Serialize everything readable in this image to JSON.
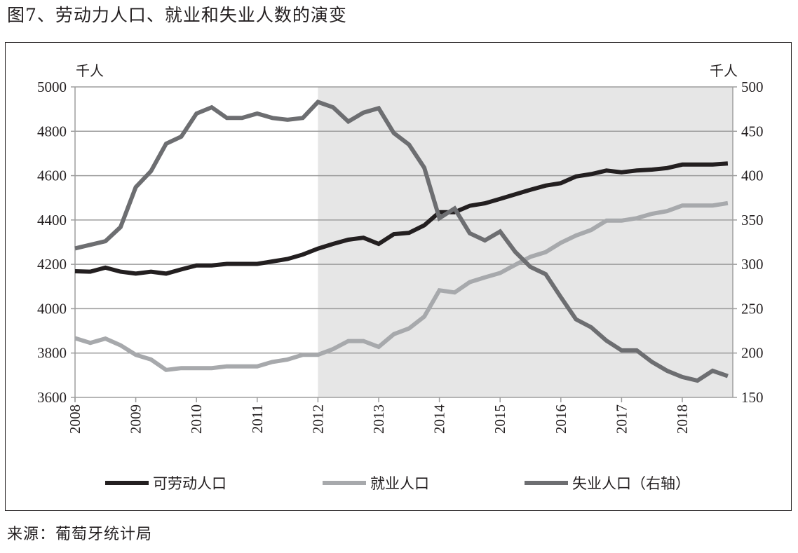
{
  "title": "图7、劳动力人口、就业和失业人数的演变",
  "source": "来源：葡萄牙统计局",
  "chart_data": {
    "type": "line",
    "title": "图7、劳动力人口、就业和失业人数的演变",
    "left_unit": "千人",
    "right_unit": "千人",
    "x_start": 2008,
    "x_step": 0.25,
    "xlim": [
      2008,
      2018.85
    ],
    "ylim_left": [
      3600,
      5000
    ],
    "ylim_right": [
      150,
      500
    ],
    "left_ticks": [
      "3600",
      "3800",
      "4000",
      "4200",
      "4400",
      "4600",
      "4800",
      "5000"
    ],
    "right_ticks": [
      "150",
      "200",
      "250",
      "300",
      "350",
      "400",
      "450",
      "500"
    ],
    "x_ticks": [
      "2008",
      "2009",
      "2010",
      "2011",
      "2012",
      "2013",
      "2014",
      "2015",
      "2016",
      "2017",
      "2018"
    ],
    "shaded_from": 2012,
    "grid": true,
    "legend_position": "bottom",
    "series": [
      {
        "name": "可劳动人口",
        "axis": "left",
        "color": "#231f20",
        "values": [
          4169,
          4167,
          4185,
          4167,
          4158,
          4167,
          4158,
          4177,
          4195,
          4195,
          4202,
          4202,
          4202,
          4213,
          4224,
          4244,
          4271,
          4292,
          4311,
          4320,
          4292,
          4336,
          4342,
          4376,
          4435,
          4435,
          4464,
          4475,
          4495,
          4516,
          4536,
          4555,
          4566,
          4596,
          4607,
          4623,
          4615,
          4623,
          4627,
          4634,
          4650,
          4650,
          4650,
          4655
        ]
      },
      {
        "name": "就业人口",
        "axis": "left",
        "color": "#a7a9ac",
        "values": [
          3867,
          3846,
          3865,
          3835,
          3792,
          3771,
          3724,
          3732,
          3732,
          3732,
          3740,
          3740,
          3740,
          3760,
          3771,
          3792,
          3792,
          3818,
          3854,
          3854,
          3828,
          3885,
          3911,
          3964,
          4083,
          4073,
          4120,
          4141,
          4161,
          4198,
          4234,
          4255,
          4297,
          4330,
          4355,
          4397,
          4397,
          4408,
          4428,
          4440,
          4465,
          4465,
          4465,
          4476
        ]
      },
      {
        "name": "失业人口（右轴）",
        "axis": "right",
        "color": "#6d6e71",
        "values": [
          318,
          322,
          326,
          342,
          387,
          405,
          436,
          444,
          470,
          477,
          465,
          465,
          470,
          465,
          463,
          465,
          483,
          477,
          461,
          471,
          476,
          448,
          435,
          409,
          352,
          363,
          335,
          327,
          337,
          314,
          297,
          289,
          263,
          238,
          229,
          214,
          203,
          203,
          190,
          180,
          173,
          169,
          180,
          174
        ]
      }
    ]
  }
}
